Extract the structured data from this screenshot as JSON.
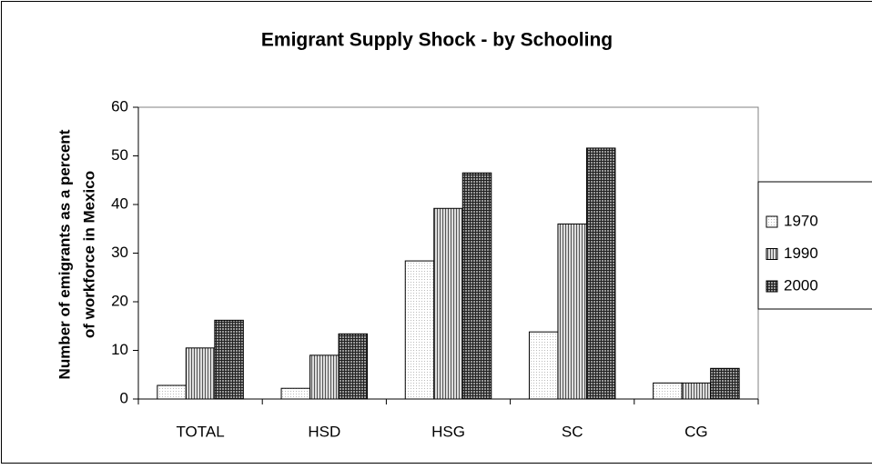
{
  "chart_data": {
    "type": "bar",
    "title": "Emigrant Supply Shock - by Schooling",
    "y_label": [
      "Number of emigrants as a percent",
      "of workforce in Mexico"
    ],
    "categories": [
      "TOTAL",
      "HSD",
      "HSG",
      "SC",
      "CG"
    ],
    "series": [
      {
        "name": "1970",
        "color": "#f2f2f2",
        "pattern": "dots",
        "values": [
          2.8,
          2.2,
          28.4,
          13.8,
          3.3
        ]
      },
      {
        "name": "1990",
        "color": "#c8c8c8",
        "pattern": "vertical",
        "values": [
          10.5,
          9.0,
          39.2,
          36.0,
          3.3
        ]
      },
      {
        "name": "2000",
        "color": "#808080",
        "pattern": "crosshatch",
        "values": [
          16.2,
          13.4,
          46.5,
          51.6,
          6.3
        ]
      }
    ],
    "ylim": [
      0,
      60
    ],
    "yticks": [
      0,
      10,
      20,
      30,
      40,
      50,
      60
    ],
    "grid": false,
    "legend": "right"
  }
}
